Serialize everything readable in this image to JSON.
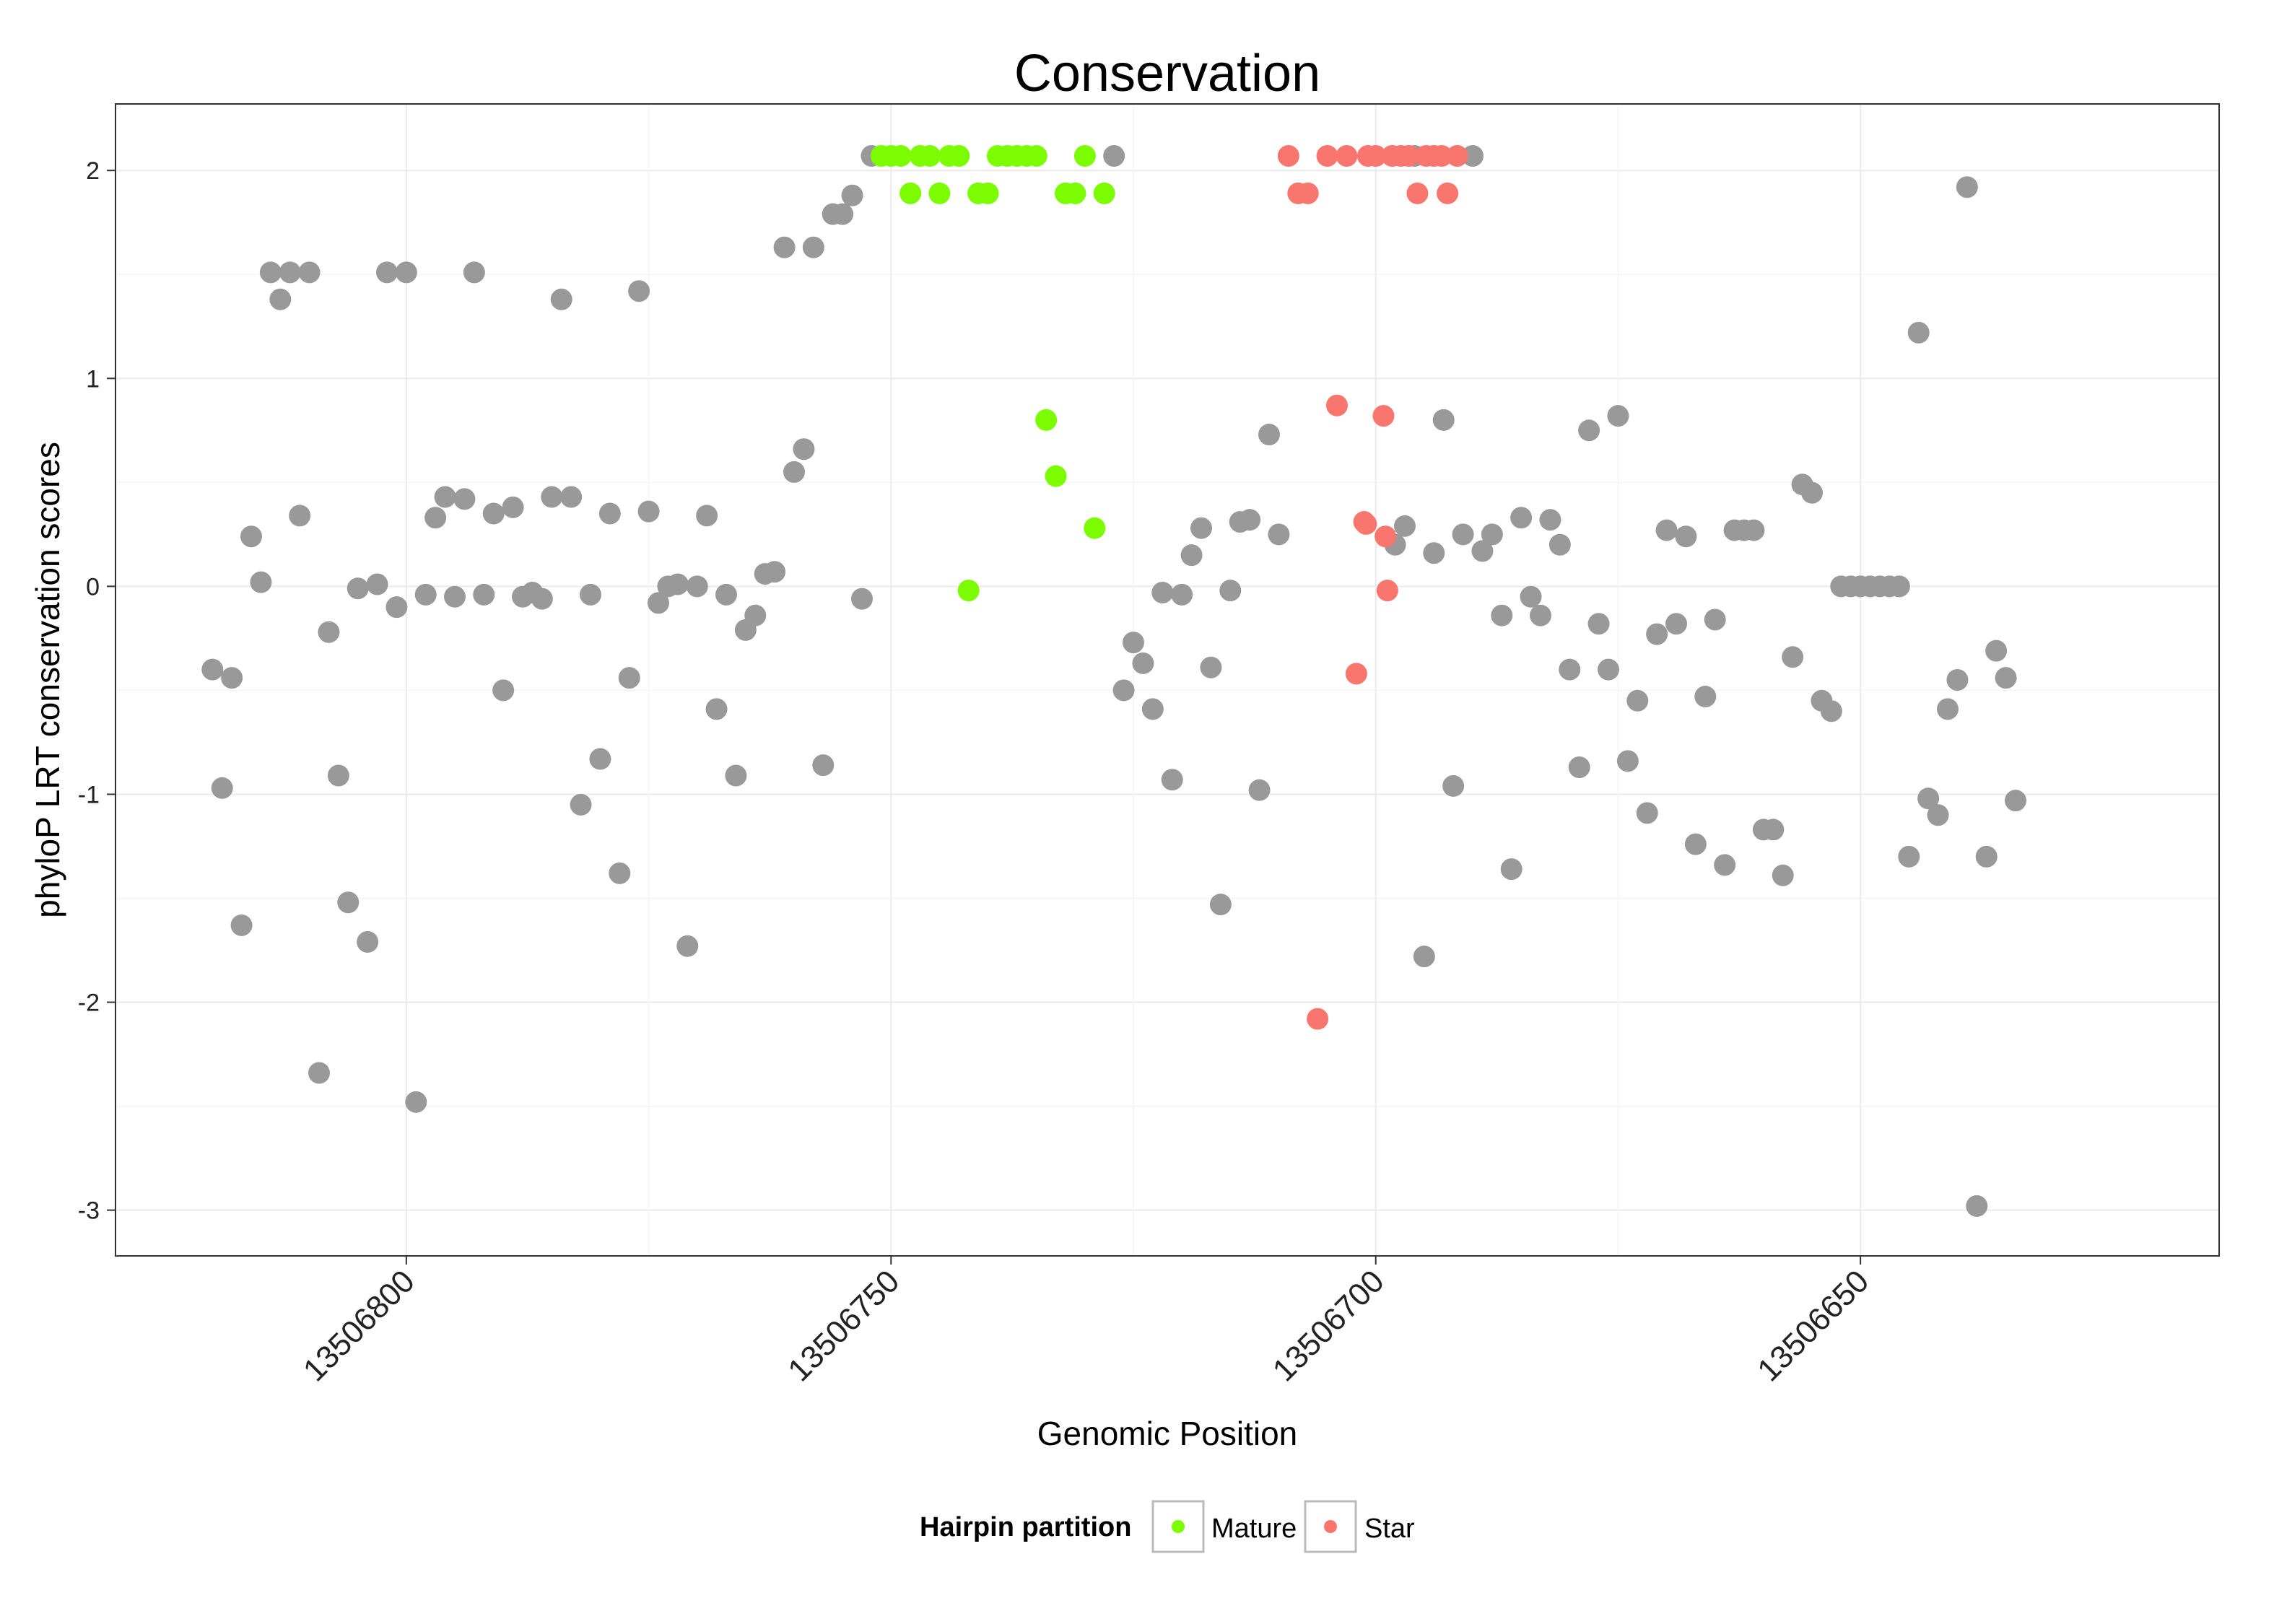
{
  "chart_data": {
    "type": "scatter",
    "title": "Conservation",
    "xlabel": "Genomic Position",
    "ylabel": "phyloP LRT conservation scores",
    "xlim": [
      13506830,
      13506613
    ],
    "ylim": [
      -3.22,
      2.32
    ],
    "x_reversed": true,
    "grid": true,
    "x_ticks": [
      13506800,
      13506750,
      13506700,
      13506650
    ],
    "x_tick_labels": [
      "13506800",
      "13506750",
      "13506700",
      "13506650"
    ],
    "y_ticks": [
      2,
      1,
      0,
      -1,
      -2,
      -3
    ],
    "y_tick_labels": [
      "2",
      "1",
      "0",
      "-1",
      "-2",
      "-3"
    ],
    "legend": {
      "title": "Hairpin partition",
      "position": "bottom",
      "entries": [
        {
          "label": "Mature",
          "color": "#7CFC00"
        },
        {
          "label": "Star",
          "color": "#F8766D"
        }
      ]
    },
    "series": [
      {
        "name": "Other",
        "color": "#999999",
        "points": [
          [
            13506820,
            -0.4
          ],
          [
            13506819,
            -0.97
          ],
          [
            13506818,
            -0.44
          ],
          [
            13506817,
            -1.63
          ],
          [
            13506816,
            0.24
          ],
          [
            13506815,
            0.02
          ],
          [
            13506814,
            1.51
          ],
          [
            13506813,
            1.38
          ],
          [
            13506812,
            1.51
          ],
          [
            13506811,
            0.34
          ],
          [
            13506810,
            1.51
          ],
          [
            13506809,
            -2.34
          ],
          [
            13506808,
            -0.22
          ],
          [
            13506807,
            -0.91
          ],
          [
            13506806,
            -1.52
          ],
          [
            13506805,
            -0.01
          ],
          [
            13506804,
            -1.71
          ],
          [
            13506803,
            0.01
          ],
          [
            13506802,
            1.51
          ],
          [
            13506801,
            -0.1
          ],
          [
            13506800,
            1.51
          ],
          [
            13506799,
            -2.48
          ],
          [
            13506798,
            -0.04
          ],
          [
            13506797,
            0.33
          ],
          [
            13506796,
            0.43
          ],
          [
            13506795,
            -0.05
          ],
          [
            13506794,
            0.42
          ],
          [
            13506793,
            1.51
          ],
          [
            13506792,
            -0.04
          ],
          [
            13506791,
            0.35
          ],
          [
            13506790,
            -0.5
          ],
          [
            13506789,
            0.38
          ],
          [
            13506788,
            -0.05
          ],
          [
            13506787,
            -0.03
          ],
          [
            13506786,
            -0.06
          ],
          [
            13506785,
            0.43
          ],
          [
            13506784,
            1.38
          ],
          [
            13506783,
            0.43
          ],
          [
            13506782,
            -1.05
          ],
          [
            13506781,
            -0.04
          ],
          [
            13506780,
            -0.83
          ],
          [
            13506779,
            0.35
          ],
          [
            13506778,
            -1.38
          ],
          [
            13506777,
            -0.44
          ],
          [
            13506776,
            1.42
          ],
          [
            13506775,
            0.36
          ],
          [
            13506774,
            -0.08
          ],
          [
            13506773,
            0.0
          ],
          [
            13506772,
            0.01
          ],
          [
            13506771,
            -1.73
          ],
          [
            13506770,
            0.0
          ],
          [
            13506769,
            0.34
          ],
          [
            13506768,
            -0.59
          ],
          [
            13506767,
            -0.04
          ],
          [
            13506766,
            -0.91
          ],
          [
            13506765,
            -0.21
          ],
          [
            13506764,
            -0.14
          ],
          [
            13506763,
            0.06
          ],
          [
            13506762,
            0.07
          ],
          [
            13506761,
            1.63
          ],
          [
            13506760,
            0.55
          ],
          [
            13506759,
            0.66
          ],
          [
            13506758,
            1.63
          ],
          [
            13506757,
            -0.86
          ],
          [
            13506756,
            1.79
          ],
          [
            13506755,
            1.79
          ],
          [
            13506754,
            1.88
          ],
          [
            13506753,
            -0.06
          ],
          [
            13506752,
            2.07
          ],
          [
            13506727,
            2.07
          ],
          [
            13506726,
            -0.5
          ],
          [
            13506725,
            -0.27
          ],
          [
            13506724,
            -0.37
          ],
          [
            13506723,
            -0.59
          ],
          [
            13506722,
            -0.03
          ],
          [
            13506721,
            -0.93
          ],
          [
            13506720,
            -0.04
          ],
          [
            13506719,
            0.15
          ],
          [
            13506718,
            0.28
          ],
          [
            13506717,
            -0.39
          ],
          [
            13506716,
            -1.53
          ],
          [
            13506715,
            -0.02
          ],
          [
            13506714,
            0.31
          ],
          [
            13506713,
            0.32
          ],
          [
            13506712,
            -0.98
          ],
          [
            13506711,
            0.73
          ],
          [
            13506710,
            0.25
          ],
          [
            13506698,
            0.2
          ],
          [
            13506697,
            0.29
          ],
          [
            13506696,
            2.07
          ],
          [
            13506695,
            -1.78
          ],
          [
            13506694,
            0.16
          ],
          [
            13506693,
            0.8
          ],
          [
            13506692,
            -0.96
          ],
          [
            13506691,
            0.25
          ],
          [
            13506690,
            2.07
          ],
          [
            13506689,
            0.17
          ],
          [
            13506688,
            0.25
          ],
          [
            13506687,
            -0.14
          ],
          [
            13506686,
            -1.36
          ],
          [
            13506685,
            0.33
          ],
          [
            13506684,
            -0.05
          ],
          [
            13506683,
            -0.14
          ],
          [
            13506682,
            0.32
          ],
          [
            13506681,
            0.2
          ],
          [
            13506680,
            -0.4
          ],
          [
            13506679,
            -0.87
          ],
          [
            13506678,
            0.75
          ],
          [
            13506677,
            -0.18
          ],
          [
            13506676,
            -0.4
          ],
          [
            13506675,
            0.82
          ],
          [
            13506674,
            -0.84
          ],
          [
            13506673,
            -0.55
          ],
          [
            13506672,
            -1.09
          ],
          [
            13506671,
            -0.23
          ],
          [
            13506670,
            0.27
          ],
          [
            13506669,
            -0.18
          ],
          [
            13506668,
            0.24
          ],
          [
            13506667,
            -1.24
          ],
          [
            13506666,
            -0.53
          ],
          [
            13506665,
            -0.16
          ],
          [
            13506664,
            -1.34
          ],
          [
            13506663,
            0.27
          ],
          [
            13506662,
            0.27
          ],
          [
            13506661,
            0.27
          ],
          [
            13506660,
            -1.17
          ],
          [
            13506659,
            -1.17
          ],
          [
            13506658,
            -1.39
          ],
          [
            13506657,
            -0.34
          ],
          [
            13506656,
            0.49
          ],
          [
            13506655,
            0.45
          ],
          [
            13506654,
            -0.55
          ],
          [
            13506653,
            -0.6
          ],
          [
            13506652,
            0.0
          ],
          [
            13506651,
            0.0
          ],
          [
            13506650,
            0.0
          ],
          [
            13506649,
            0.0
          ],
          [
            13506648,
            0.0
          ],
          [
            13506647,
            0.0
          ],
          [
            13506646,
            0.0
          ],
          [
            13506645,
            -1.3
          ],
          [
            13506644,
            1.22
          ],
          [
            13506643,
            -1.02
          ],
          [
            13506642,
            -1.1
          ],
          [
            13506641,
            -0.59
          ],
          [
            13506640,
            -0.45
          ],
          [
            13506639,
            1.92
          ],
          [
            13506638,
            -2.98
          ],
          [
            13506637,
            -1.3
          ],
          [
            13506636,
            -0.31
          ],
          [
            13506635,
            -0.44
          ],
          [
            13506634,
            -1.03
          ]
        ]
      },
      {
        "name": "Mature",
        "color": "#7CFC00",
        "points": [
          [
            13506751,
            2.07
          ],
          [
            13506750,
            2.07
          ],
          [
            13506749,
            2.07
          ],
          [
            13506748,
            1.89
          ],
          [
            13506747,
            2.07
          ],
          [
            13506746,
            2.07
          ],
          [
            13506745,
            1.89
          ],
          [
            13506744,
            2.07
          ],
          [
            13506743,
            2.07
          ],
          [
            13506742,
            -0.02
          ],
          [
            13506741,
            1.89
          ],
          [
            13506740,
            1.89
          ],
          [
            13506739,
            2.07
          ],
          [
            13506738,
            2.07
          ],
          [
            13506737,
            2.07
          ],
          [
            13506736,
            2.07
          ],
          [
            13506735,
            2.07
          ],
          [
            13506734,
            0.8
          ],
          [
            13506733,
            0.53
          ],
          [
            13506732,
            1.89
          ],
          [
            13506731,
            1.89
          ],
          [
            13506730,
            2.07
          ],
          [
            13506729,
            0.28
          ],
          [
            13506728,
            1.89
          ]
        ]
      },
      {
        "name": "Star",
        "color": "#F8766D",
        "points": [
          [
            13506709,
            2.07
          ],
          [
            13506708,
            1.89
          ],
          [
            13506707,
            1.89
          ],
          [
            13506706,
            -2.08
          ],
          [
            13506705,
            2.07
          ],
          [
            13506704,
            0.87
          ],
          [
            13506703,
            2.07
          ],
          [
            13506702,
            -0.42
          ],
          [
            13506701,
            0.3
          ],
          [
            13506700,
            2.07
          ],
          [
            13506699,
            0.24
          ],
          [
            13506698.3,
            2.07
          ],
          [
            13506697.4,
            2.07
          ],
          [
            13506696.6,
            2.07
          ],
          [
            13506695.7,
            1.89
          ],
          [
            13506694.8,
            2.07
          ],
          [
            13506694,
            2.07
          ],
          [
            13506693.2,
            2.07
          ],
          [
            13506692.6,
            1.89
          ],
          [
            13506691.6,
            2.07
          ],
          [
            13506700.8,
            2.07
          ],
          [
            13506701.2,
            0.31
          ],
          [
            13506699.2,
            0.82
          ],
          [
            13506698.8,
            -0.02
          ]
        ]
      }
    ]
  }
}
